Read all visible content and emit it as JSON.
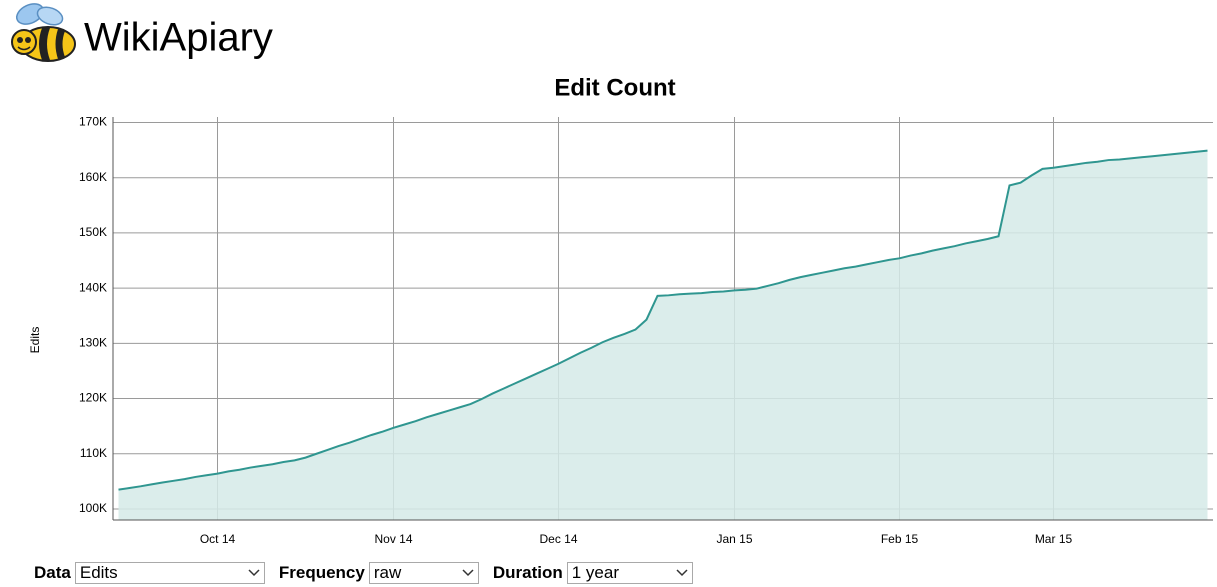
{
  "logo": {
    "text": "WikiApiary"
  },
  "chart_data": {
    "type": "line",
    "title": "Edit Count",
    "y_label": "Edits",
    "color": "#2f9690",
    "fill": "#d5eae8",
    "grid": true,
    "categories": [
      null,
      null,
      null,
      null,
      null,
      null,
      null,
      null,
      null,
      "Oct 14",
      null,
      null,
      null,
      null,
      null,
      null,
      null,
      null,
      null,
      null,
      null,
      null,
      null,
      null,
      null,
      "Nov 14",
      null,
      null,
      null,
      null,
      null,
      null,
      null,
      null,
      null,
      null,
      null,
      null,
      null,
      null,
      "Dec 14",
      null,
      null,
      null,
      null,
      null,
      null,
      null,
      null,
      null,
      null,
      null,
      null,
      null,
      null,
      null,
      "Jan 15",
      null,
      null,
      null,
      null,
      null,
      null,
      null,
      null,
      null,
      null,
      null,
      null,
      null,
      null,
      "Feb 15",
      null,
      null,
      null,
      null,
      null,
      null,
      null,
      null,
      null,
      null,
      null,
      null,
      null,
      "Mar 15",
      null,
      null,
      null,
      null,
      null,
      null,
      null,
      null,
      null,
      null,
      null,
      null,
      null,
      null
    ],
    "values": [
      103500,
      103800,
      104100,
      104450,
      104800,
      105100,
      105400,
      105800,
      106100,
      106400,
      106800,
      107100,
      107500,
      107800,
      108100,
      108500,
      108800,
      109300,
      110000,
      110700,
      111400,
      112000,
      112700,
      113400,
      114000,
      114700,
      115300,
      115900,
      116600,
      117200,
      117800,
      118400,
      119000,
      119900,
      120900,
      121800,
      122700,
      123600,
      124500,
      125400,
      126300,
      127300,
      128300,
      129200,
      130200,
      131000,
      131700,
      132500,
      134300,
      138600,
      138700,
      138900,
      139000,
      139100,
      139300,
      139400,
      139600,
      139700,
      139900,
      140400,
      140900,
      141500,
      142000,
      142400,
      142800,
      143200,
      143600,
      143900,
      144300,
      144700,
      145100,
      145400,
      145900,
      146300,
      146800,
      147200,
      147600,
      148100,
      148500,
      148900,
      149400,
      158600,
      159100,
      160400,
      161600,
      161800,
      162100,
      162400,
      162700,
      162900,
      163200,
      163300,
      163500,
      163700,
      163900,
      164100,
      164300,
      164500,
      164700,
      164900
    ],
    "ylim": [
      98000,
      171000
    ],
    "yticks": [
      {
        "value": 100000,
        "label": "100K"
      },
      {
        "value": 110000,
        "label": "110K"
      },
      {
        "value": 120000,
        "label": "120K"
      },
      {
        "value": 130000,
        "label": "130K"
      },
      {
        "value": 140000,
        "label": "140K"
      },
      {
        "value": 150000,
        "label": "150K"
      },
      {
        "value": 160000,
        "label": "160K"
      },
      {
        "value": 170000,
        "label": "170K"
      }
    ]
  },
  "controls": [
    {
      "label": "Data",
      "value": "Edits"
    },
    {
      "label": "Frequency",
      "value": "raw"
    },
    {
      "label": "Duration",
      "value": "1 year"
    }
  ]
}
